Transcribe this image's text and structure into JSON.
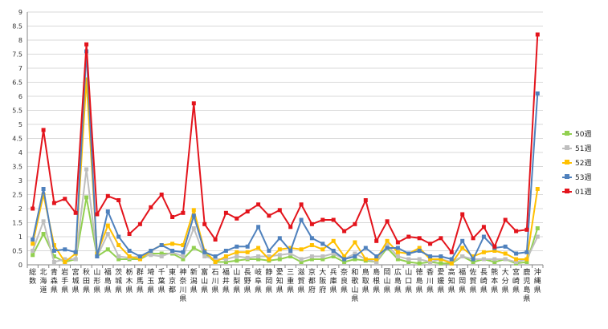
{
  "chart_data": {
    "type": "line",
    "title": "",
    "xlabel": "",
    "ylabel": "",
    "ylim": [
      0,
      9
    ],
    "yticks": [
      0,
      0.5,
      1,
      1.5,
      2,
      2.5,
      3,
      3.5,
      4,
      4.5,
      5,
      5.5,
      6,
      6.5,
      7,
      7.5,
      8,
      8.5,
      9
    ],
    "grid": true,
    "legend_position": "right",
    "categories": [
      "総数",
      "北海道",
      "青森県",
      "岩手県",
      "宮城県",
      "秋田県",
      "山形県",
      "福島県",
      "茨城県",
      "栃木県",
      "群馬県",
      "埼玉県",
      "千葉県",
      "東京都",
      "神奈川県",
      "新潟県",
      "富山県",
      "石川県",
      "福井県",
      "山梨県",
      "長野県",
      "岐阜県",
      "静岡県",
      "愛知県",
      "三重県",
      "滋賀県",
      "京都府",
      "大阪府",
      "兵庫県",
      "奈良県",
      "和歌山県",
      "鳥取県",
      "島根県",
      "岡山県",
      "広島県",
      "山口県",
      "徳島県",
      "香川県",
      "愛媛県",
      "高知県",
      "福岡県",
      "佐賀県",
      "長崎県",
      "熊本県",
      "大分県",
      "宮崎県",
      "鹿児島県",
      "沖縄県"
    ],
    "series": [
      {
        "name": "50週",
        "color": "#92d050",
        "values": [
          0.35,
          1.1,
          0.3,
          0.1,
          0.2,
          2.4,
          0.3,
          0.55,
          0.2,
          0.2,
          0.2,
          0.4,
          0.4,
          0.4,
          0.2,
          0.6,
          0.4,
          0.1,
          0.1,
          0.15,
          0.2,
          0.2,
          0.15,
          0.2,
          0.3,
          0.1,
          0.2,
          0.2,
          0.3,
          0.1,
          0.2,
          0.15,
          0.1,
          0.6,
          0.2,
          0.1,
          0.05,
          0.1,
          0.05,
          0.05,
          0.3,
          0.1,
          0.2,
          0.1,
          0.2,
          0.05,
          0.1,
          1.3
        ]
      },
      {
        "name": "51週",
        "color": "#bfbfbf",
        "values": [
          0.5,
          1.55,
          0.1,
          0.2,
          0.2,
          3.4,
          0.3,
          1.1,
          0.3,
          0.25,
          0.3,
          0.35,
          0.3,
          0.45,
          0.3,
          1.3,
          0.3,
          0.2,
          0.2,
          0.3,
          0.25,
          0.3,
          0.3,
          0.35,
          0.4,
          0.2,
          0.3,
          0.3,
          0.4,
          0.2,
          0.4,
          0.2,
          0.1,
          0.7,
          0.3,
          0.2,
          0.2,
          0.1,
          0.2,
          0.1,
          0.3,
          0.2,
          0.2,
          0.2,
          0.2,
          0.1,
          0.2,
          1.0
        ]
      },
      {
        "name": "52週",
        "color": "#ffc000",
        "values": [
          0.75,
          2.5,
          0.7,
          0.1,
          0.4,
          6.6,
          0.4,
          1.4,
          0.7,
          0.3,
          0.2,
          0.5,
          0.7,
          0.75,
          0.7,
          1.95,
          0.5,
          0.1,
          0.3,
          0.45,
          0.45,
          0.6,
          0.2,
          0.55,
          0.6,
          0.55,
          0.7,
          0.55,
          0.85,
          0.3,
          0.8,
          0.2,
          0.2,
          0.85,
          0.45,
          0.4,
          0.6,
          0.2,
          0.2,
          0.05,
          0.6,
          0.3,
          0.45,
          0.5,
          0.4,
          0.2,
          0.2,
          2.7
        ]
      },
      {
        "name": "53週",
        "color": "#4f81bd",
        "values": [
          0.9,
          2.7,
          0.5,
          0.55,
          0.45,
          7.6,
          0.3,
          1.9,
          1.0,
          0.5,
          0.3,
          0.5,
          0.7,
          0.5,
          0.45,
          1.75,
          0.45,
          0.3,
          0.5,
          0.65,
          0.65,
          1.35,
          0.5,
          0.95,
          0.5,
          1.6,
          0.95,
          0.75,
          0.5,
          0.2,
          0.3,
          0.6,
          0.3,
          0.6,
          0.6,
          0.4,
          0.5,
          0.3,
          0.3,
          0.2,
          0.85,
          0.2,
          1.0,
          0.6,
          0.65,
          0.4,
          0.45,
          6.1
        ]
      },
      {
        "name": "01週",
        "color": "#e3141c",
        "values": [
          2.0,
          4.8,
          2.2,
          2.35,
          1.85,
          7.85,
          1.8,
          2.45,
          2.3,
          1.1,
          1.45,
          2.05,
          2.5,
          1.7,
          1.85,
          5.75,
          1.45,
          0.9,
          1.85,
          1.65,
          1.9,
          2.15,
          1.75,
          1.95,
          1.35,
          2.15,
          1.45,
          1.6,
          1.6,
          1.2,
          1.45,
          2.3,
          0.85,
          1.55,
          0.8,
          1.0,
          0.95,
          0.75,
          0.95,
          0.45,
          1.8,
          0.95,
          1.35,
          0.65,
          1.6,
          1.2,
          1.25,
          8.2
        ]
      }
    ]
  }
}
